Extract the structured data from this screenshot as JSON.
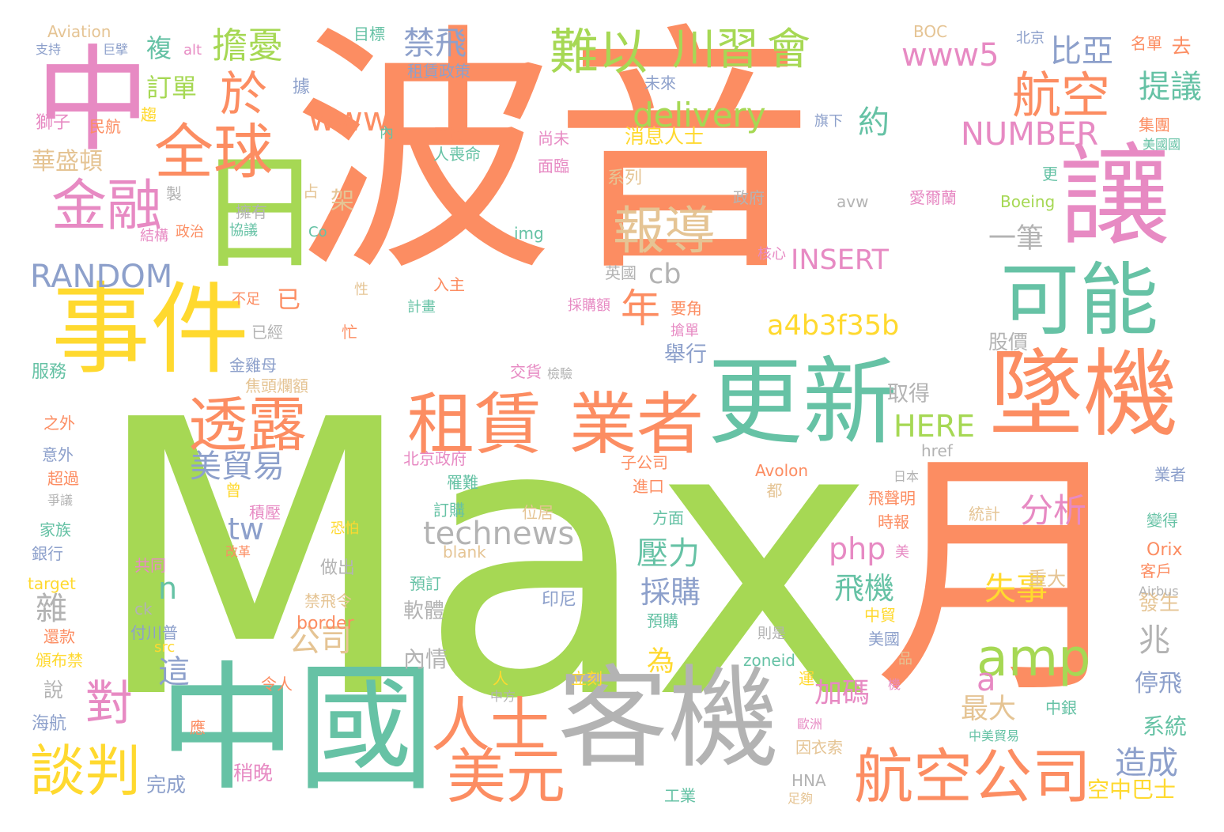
{
  "colors": {
    "orange": "#fc8d62",
    "green": "#a6d854",
    "teal": "#66c2a5",
    "pink": "#e78ac3",
    "blue": "#8da0cb",
    "yellow": "#ffd92f",
    "tan": "#e5c494",
    "gray": "#b3b3b3"
  },
  "words": [
    {
      "text": "波音",
      "color": "orange"
    },
    {
      "text": "Max",
      "color": "green"
    },
    {
      "text": "中",
      "color": "pink"
    },
    {
      "text": "日",
      "color": "green"
    },
    {
      "text": "月",
      "color": "orange"
    },
    {
      "text": "中國",
      "color": "teal"
    },
    {
      "text": "客機",
      "color": "gray"
    },
    {
      "text": "更新",
      "color": "teal"
    },
    {
      "text": "墜機",
      "color": "orange"
    },
    {
      "text": "讓",
      "color": "pink"
    },
    {
      "text": "可能",
      "color": "teal"
    },
    {
      "text": "事件",
      "color": "yellow"
    },
    {
      "text": "租賃",
      "color": "orange"
    },
    {
      "text": "業者",
      "color": "orange"
    },
    {
      "text": "透露",
      "color": "orange"
    },
    {
      "text": "航空公司",
      "color": "orange"
    },
    {
      "text": "美元",
      "color": "orange"
    },
    {
      "text": "人士",
      "color": "orange"
    },
    {
      "text": "amp",
      "color": "green"
    },
    {
      "text": "全球",
      "color": "orange"
    },
    {
      "text": "金融",
      "color": "pink"
    },
    {
      "text": "報導",
      "color": "tan"
    },
    {
      "text": "難以",
      "color": "green"
    },
    {
      "text": "川習",
      "color": "green"
    },
    {
      "text": "會",
      "color": "green"
    },
    {
      "text": "航空",
      "color": "orange"
    },
    {
      "text": "談判",
      "color": "yellow"
    },
    {
      "text": "對",
      "color": "pink"
    },
    {
      "text": "於",
      "color": "orange"
    },
    {
      "text": "擔憂",
      "color": "green"
    },
    {
      "text": "禁飛",
      "color": "blue"
    },
    {
      "text": "比亞",
      "color": "blue"
    },
    {
      "text": "提議",
      "color": "teal"
    },
    {
      "text": "www5",
      "color": "pink"
    },
    {
      "text": "www",
      "color": "orange"
    },
    {
      "text": "delivery",
      "color": "green"
    },
    {
      "text": "NUMBER",
      "color": "pink"
    },
    {
      "text": "約",
      "color": "teal"
    },
    {
      "text": "INSERT",
      "color": "pink"
    },
    {
      "text": "a4b3f35b",
      "color": "yellow"
    },
    {
      "text": "RANDOM",
      "color": "blue"
    },
    {
      "text": "cb",
      "color": "gray"
    },
    {
      "text": "一筆",
      "color": "gray"
    },
    {
      "text": "年",
      "color": "orange"
    },
    {
      "text": "美貿易",
      "color": "blue"
    },
    {
      "text": "technews",
      "color": "gray"
    },
    {
      "text": "tw",
      "color": "blue"
    },
    {
      "text": "HERE",
      "color": "green"
    },
    {
      "text": "分析",
      "color": "pink"
    },
    {
      "text": "壓力",
      "color": "teal"
    },
    {
      "text": "php",
      "color": "pink"
    },
    {
      "text": "採購",
      "color": "blue"
    },
    {
      "text": "飛機",
      "color": "teal"
    },
    {
      "text": "失事",
      "color": "yellow"
    },
    {
      "text": "公司",
      "color": "tan"
    },
    {
      "text": "加碼",
      "color": "pink"
    },
    {
      "text": "最大",
      "color": "tan"
    },
    {
      "text": "造成",
      "color": "blue"
    },
    {
      "text": "華盛頓",
      "color": "tan"
    },
    {
      "text": "訂單",
      "color": "green"
    },
    {
      "text": "複",
      "color": "teal"
    },
    {
      "text": "架",
      "color": "tan"
    },
    {
      "text": "取得",
      "color": "gray"
    },
    {
      "text": "股價",
      "color": "gray"
    },
    {
      "text": "舉行",
      "color": "blue"
    },
    {
      "text": "消息人士",
      "color": "yellow"
    },
    {
      "text": "為",
      "color": "yellow"
    },
    {
      "text": "n",
      "color": "teal"
    },
    {
      "text": "a",
      "color": "pink"
    },
    {
      "text": "雜",
      "color": "gray"
    },
    {
      "text": "這",
      "color": "blue"
    },
    {
      "text": "兆",
      "color": "gray"
    },
    {
      "text": "內情",
      "color": "gray"
    },
    {
      "text": "停飛",
      "color": "blue"
    },
    {
      "text": "系統",
      "color": "teal"
    },
    {
      "text": "空中巴士",
      "color": "yellow"
    },
    {
      "text": "發生",
      "color": "tan"
    },
    {
      "text": "軟體",
      "color": "gray"
    },
    {
      "text": "重大",
      "color": "tan"
    },
    {
      "text": "完成",
      "color": "blue"
    },
    {
      "text": "稍晚",
      "color": "pink"
    },
    {
      "text": "已",
      "color": "orange"
    },
    {
      "text": "Aviation",
      "color": "tan"
    },
    {
      "text": "alt",
      "color": "pink"
    },
    {
      "text": "目標",
      "color": "teal"
    },
    {
      "text": "BOC",
      "color": "tan"
    },
    {
      "text": "北京",
      "color": "blue"
    },
    {
      "text": "名單",
      "color": "orange"
    },
    {
      "text": "去",
      "color": "orange"
    },
    {
      "text": "支持",
      "color": "blue"
    },
    {
      "text": "巨擘",
      "color": "blue"
    },
    {
      "text": "租賃政策",
      "color": "blue"
    },
    {
      "text": "據",
      "color": "blue"
    },
    {
      "text": "未來",
      "color": "blue"
    },
    {
      "text": "旗下",
      "color": "blue"
    },
    {
      "text": "集團",
      "color": "orange"
    },
    {
      "text": "美國國",
      "color": "teal"
    },
    {
      "text": "獅子",
      "color": "pink"
    },
    {
      "text": "民航",
      "color": "orange"
    },
    {
      "text": "趨",
      "color": "yellow"
    },
    {
      "text": "內",
      "color": "teal"
    },
    {
      "text": "買進",
      "color": "orange"
    },
    {
      "text": "人喪命",
      "color": "teal"
    },
    {
      "text": "尚未",
      "color": "pink"
    },
    {
      "text": "面臨",
      "color": "pink"
    },
    {
      "text": "系列",
      "color": "tan"
    },
    {
      "text": "更",
      "color": "teal"
    },
    {
      "text": "製",
      "color": "gray"
    },
    {
      "text": "占",
      "color": "tan"
    },
    {
      "text": "政府",
      "color": "gray"
    },
    {
      "text": "avw",
      "color": "gray"
    },
    {
      "text": "愛爾蘭",
      "color": "pink"
    },
    {
      "text": "Boeing",
      "color": "green"
    },
    {
      "text": "擁有",
      "color": "gray"
    },
    {
      "text": "Co",
      "color": "teal"
    },
    {
      "text": "img",
      "color": "teal"
    },
    {
      "text": "結構",
      "color": "pink"
    },
    {
      "text": "政治",
      "color": "orange"
    },
    {
      "text": "協議",
      "color": "teal"
    },
    {
      "text": "核心",
      "color": "pink"
    },
    {
      "text": "英國",
      "color": "gray"
    },
    {
      "text": "入主",
      "color": "orange"
    },
    {
      "text": "計畫",
      "color": "teal"
    },
    {
      "text": "不足",
      "color": "orange"
    },
    {
      "text": "性",
      "color": "tan"
    },
    {
      "text": "採購額",
      "color": "pink"
    },
    {
      "text": "要角",
      "color": "orange"
    },
    {
      "text": "搶單",
      "color": "pink"
    },
    {
      "text": "已經",
      "color": "gray"
    },
    {
      "text": "忙",
      "color": "orange"
    },
    {
      "text": "交貨",
      "color": "pink"
    },
    {
      "text": "檢驗",
      "color": "gray"
    },
    {
      "text": "金雞母",
      "color": "blue"
    },
    {
      "text": "焦頭爛額",
      "color": "tan"
    },
    {
      "text": "服務",
      "color": "teal"
    },
    {
      "text": "北京政府",
      "color": "pink"
    },
    {
      "text": "子公司",
      "color": "orange"
    },
    {
      "text": "href",
      "color": "gray"
    },
    {
      "text": "之外",
      "color": "orange"
    },
    {
      "text": "意外",
      "color": "blue"
    },
    {
      "text": "超過",
      "color": "orange"
    },
    {
      "text": "曾",
      "color": "yellow"
    },
    {
      "text": "罹難",
      "color": "teal"
    },
    {
      "text": "Avolon",
      "color": "orange"
    },
    {
      "text": "進口",
      "color": "orange"
    },
    {
      "text": "日本",
      "color": "gray"
    },
    {
      "text": "業者",
      "color": "blue"
    },
    {
      "text": "爭議",
      "color": "gray"
    },
    {
      "text": "積壓",
      "color": "pink"
    },
    {
      "text": "都",
      "color": "tan"
    },
    {
      "text": "飛聲明",
      "color": "orange"
    },
    {
      "text": "訂購",
      "color": "teal"
    },
    {
      "text": "家族",
      "color": "teal"
    },
    {
      "text": "恐怕",
      "color": "yellow"
    },
    {
      "text": "位居",
      "color": "tan"
    },
    {
      "text": "方面",
      "color": "teal"
    },
    {
      "text": "時報",
      "color": "orange"
    },
    {
      "text": "統計",
      "color": "tan"
    },
    {
      "text": "變得",
      "color": "teal"
    },
    {
      "text": "銀行",
      "color": "blue"
    },
    {
      "text": "改革",
      "color": "orange"
    },
    {
      "text": "blank",
      "color": "tan"
    },
    {
      "text": "美",
      "color": "pink"
    },
    {
      "text": "Orix",
      "color": "orange"
    },
    {
      "text": "共同",
      "color": "pink"
    },
    {
      "text": "做出",
      "color": "gray"
    },
    {
      "text": "客戶",
      "color": "orange"
    },
    {
      "text": "target",
      "color": "yellow"
    },
    {
      "text": "預訂",
      "color": "teal"
    },
    {
      "text": "印尼",
      "color": "blue"
    },
    {
      "text": "Airbus",
      "color": "gray"
    },
    {
      "text": "ck",
      "color": "gray"
    },
    {
      "text": "禁飛令",
      "color": "tan"
    },
    {
      "text": "中貿",
      "color": "yellow"
    },
    {
      "text": "還款",
      "color": "orange"
    },
    {
      "text": "付川普",
      "color": "blue"
    },
    {
      "text": "border",
      "color": "orange"
    },
    {
      "text": "預購",
      "color": "teal"
    },
    {
      "text": "則是",
      "color": "gray"
    },
    {
      "text": "美國",
      "color": "blue"
    },
    {
      "text": "src",
      "color": "yellow"
    },
    {
      "text": "品",
      "color": "tan"
    },
    {
      "text": "頒布禁",
      "color": "yellow"
    },
    {
      "text": "zoneid",
      "color": "teal"
    },
    {
      "text": "說",
      "color": "gray"
    },
    {
      "text": "人",
      "color": "yellow"
    },
    {
      "text": "立刻",
      "color": "yellow"
    },
    {
      "text": "運",
      "color": "yellow"
    },
    {
      "text": "令人",
      "color": "orange"
    },
    {
      "text": "機",
      "color": "pink"
    },
    {
      "text": "中方",
      "color": "gray"
    },
    {
      "text": "中銀",
      "color": "teal"
    },
    {
      "text": "海航",
      "color": "blue"
    },
    {
      "text": "應",
      "color": "orange"
    },
    {
      "text": "歐洲",
      "color": "pink"
    },
    {
      "text": "中美貿易",
      "color": "teal"
    },
    {
      "text": "因衣索",
      "color": "tan"
    },
    {
      "text": "HNA",
      "color": "gray"
    },
    {
      "text": "工業",
      "color": "teal"
    },
    {
      "text": "足夠",
      "color": "tan"
    }
  ]
}
